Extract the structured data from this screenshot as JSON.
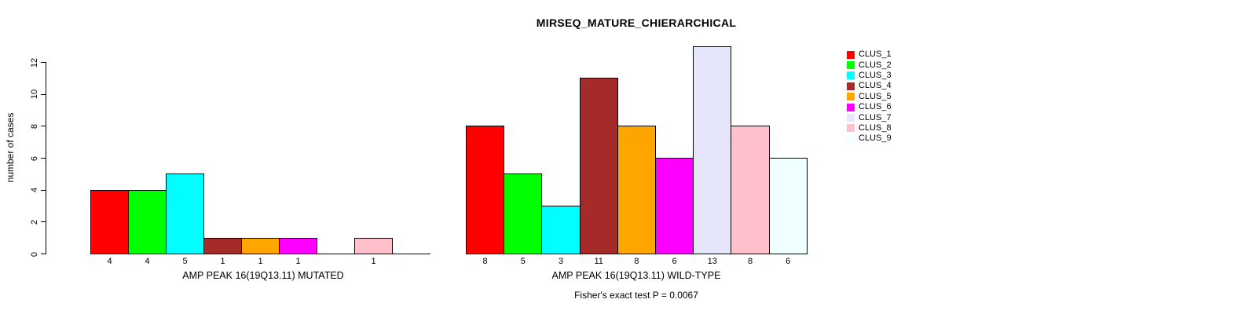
{
  "chart_data": {
    "type": "bar",
    "title": "MIRSEQ_MATURE_CHIERARCHICAL",
    "ylabel": "number of cases",
    "ylim": [
      0,
      12
    ],
    "yticks": [
      0,
      2,
      4,
      6,
      8,
      10,
      12
    ],
    "grid": false,
    "legend_position": "right",
    "categories": [
      "CLUS_1",
      "CLUS_2",
      "CLUS_3",
      "CLUS_4",
      "CLUS_5",
      "CLUS_6",
      "CLUS_7",
      "CLUS_8",
      "CLUS_9"
    ],
    "colors": [
      "#ff0000",
      "#00ff00",
      "#00ffff",
      "#a52a2a",
      "#ffa500",
      "#ff00ff",
      "#e6e6fa",
      "#ffc0cb",
      "#f0ffff"
    ],
    "series": [
      {
        "name": "AMP PEAK 16(19Q13.11) MUTATED",
        "values": [
          4,
          4,
          5,
          1,
          1,
          1,
          0,
          1,
          0
        ]
      },
      {
        "name": "AMP PEAK 16(19Q13.11) WILD-TYPE",
        "values": [
          8,
          5,
          3,
          11,
          8,
          6,
          13,
          8,
          6
        ]
      }
    ],
    "annotation": "Fisher's exact test P = 0.0067"
  }
}
